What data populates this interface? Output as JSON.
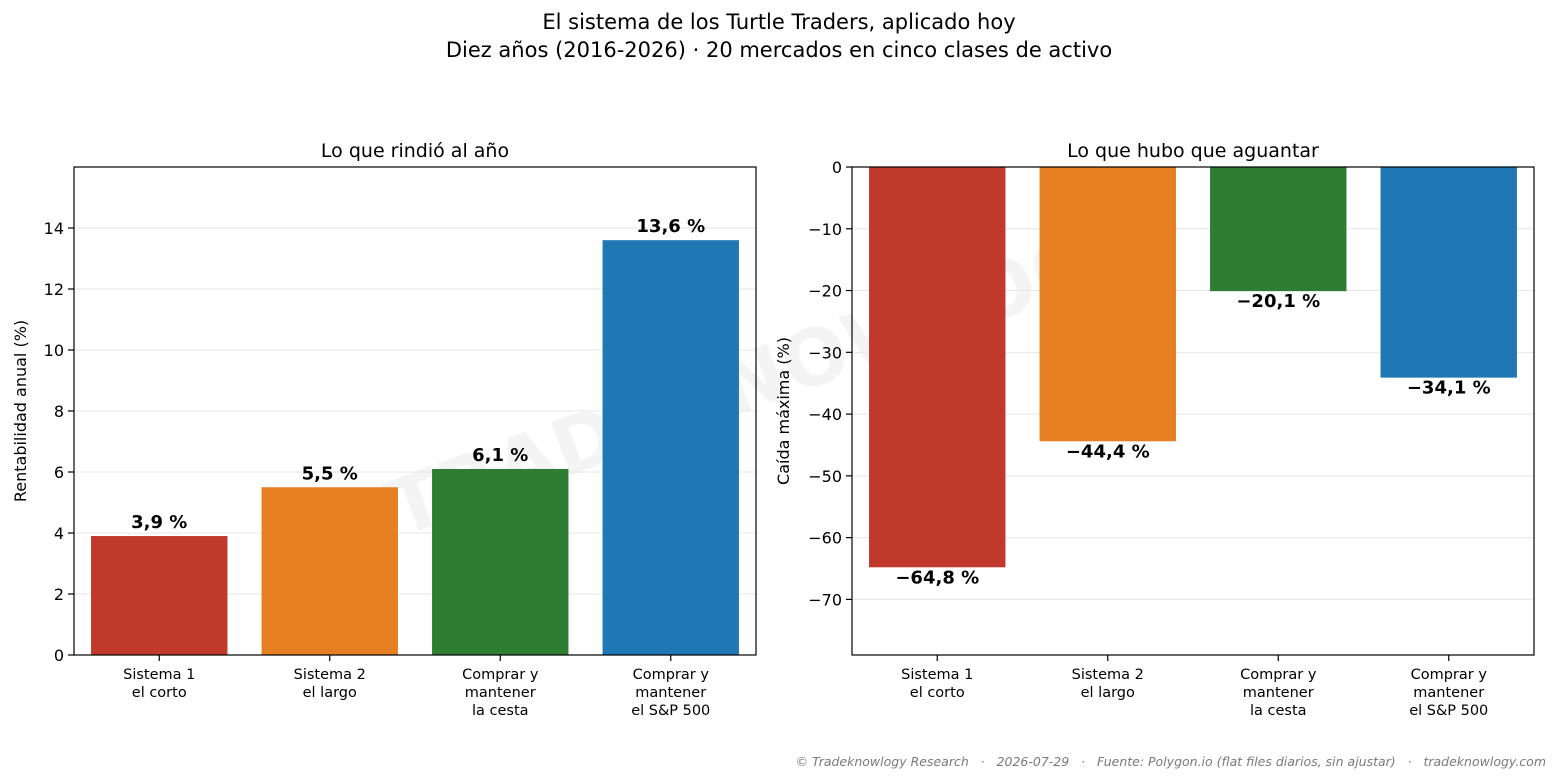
{
  "figure": {
    "title_line1": "El sistema de los Turtle Traders, aplicado hoy",
    "title_line2": "Diez años (2016-2026) · 20 mercados en cinco clases de activo",
    "watermark": "TRADEKNOWLOGY",
    "footer": "© Tradeknowlogy Research   ·   2026-07-29   ·   Fuente: Polygon.io (flat files diarios, sin ajustar)   ·   tradeknowlogy.com"
  },
  "chart_data": [
    {
      "type": "bar",
      "title": "Lo que rindió al año",
      "xlabel": "",
      "ylabel": "Rentabilidad anual (%)",
      "categories": [
        [
          "Sistema 1",
          "el corto"
        ],
        [
          "Sistema 2",
          "el largo"
        ],
        [
          "Comprar y",
          "mantener",
          "la cesta"
        ],
        [
          "Comprar y",
          "mantener",
          "el S&P 500"
        ]
      ],
      "values": [
        3.9,
        5.5,
        6.1,
        13.6
      ],
      "value_labels": [
        "3,9 %",
        "5,5 %",
        "6,1 %",
        "13,6 %"
      ],
      "colors": [
        "#c0392b",
        "#e67e22",
        "#2e7d32",
        "#1f77b4"
      ],
      "ylim": [
        0,
        16
      ],
      "yticks": [
        0,
        2,
        4,
        6,
        8,
        10,
        12,
        14
      ],
      "ytick_labels": [
        "0",
        "2",
        "4",
        "6",
        "8",
        "10",
        "12",
        "14"
      ],
      "grid": "horizontal"
    },
    {
      "type": "bar",
      "title": "Lo que hubo que aguantar",
      "xlabel": "",
      "ylabel": "Caída máxima (%)",
      "categories": [
        [
          "Sistema 1",
          "el corto"
        ],
        [
          "Sistema 2",
          "el largo"
        ],
        [
          "Comprar y",
          "mantener",
          "la cesta"
        ],
        [
          "Comprar y",
          "mantener",
          "el S&P 500"
        ]
      ],
      "values": [
        -64.8,
        -44.4,
        -20.1,
        -34.1
      ],
      "value_labels": [
        "−64,8 %",
        "−44,4 %",
        "−20,1 %",
        "−34,1 %"
      ],
      "colors": [
        "#c0392b",
        "#e67e22",
        "#2e7d32",
        "#1f77b4"
      ],
      "ylim": [
        -79,
        0
      ],
      "yticks": [
        0,
        -10,
        -20,
        -30,
        -40,
        -50,
        -60,
        -70
      ],
      "ytick_labels": [
        "0",
        "−10",
        "−20",
        "−30",
        "−40",
        "−50",
        "−60",
        "−70"
      ],
      "grid": "horizontal"
    }
  ]
}
